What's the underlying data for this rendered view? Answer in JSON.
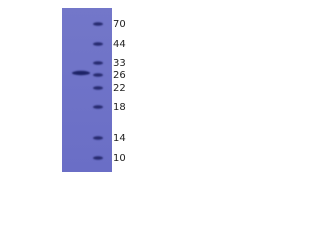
{
  "ladder": [
    "70",
    "44",
    "33",
    "26",
    "22",
    "18",
    "14",
    "10"
  ]
}
